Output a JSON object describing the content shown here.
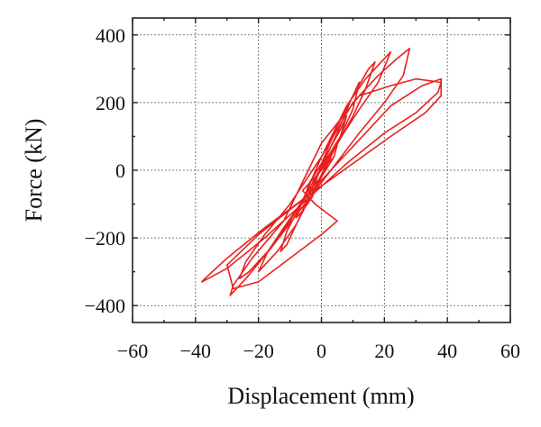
{
  "chart_data": {
    "type": "line",
    "title": "",
    "xlabel": "Displacement (mm)",
    "ylabel": "Force (kN)",
    "xlim": [
      -60,
      60
    ],
    "ylim": [
      -450,
      450
    ],
    "xticks": [
      -60,
      -40,
      -20,
      0,
      20,
      40,
      60
    ],
    "yticks": [
      -400,
      -200,
      0,
      200,
      400
    ],
    "xtick_labels": [
      "−60",
      "−40",
      "−20",
      "0",
      "20",
      "40",
      "60"
    ],
    "ytick_labels": [
      "−400",
      "−200",
      "0",
      "200",
      "400"
    ],
    "grid": true,
    "color": "#e8211f",
    "series": [
      {
        "x": [
          0,
          2,
          4,
          5,
          4,
          2,
          0,
          -2,
          -4,
          -5,
          -4,
          -2,
          0,
          3,
          6,
          8,
          6,
          3,
          0,
          -3,
          -6,
          -8,
          -6,
          -3,
          0,
          5,
          9,
          12,
          10,
          6,
          2,
          -2,
          -7,
          -11,
          -13,
          -11,
          -7,
          -2,
          0,
          5,
          10,
          15,
          17,
          14,
          10,
          4,
          -2,
          -8,
          -14,
          -18,
          -20,
          -17,
          -12,
          -6,
          0,
          8,
          14,
          19,
          22,
          18,
          12,
          5,
          -3,
          -10,
          -17,
          -23,
          -26,
          -24,
          -18,
          -10,
          0,
          10,
          18,
          24,
          28,
          26,
          20,
          12,
          3,
          -7,
          -16,
          -24,
          -29,
          -28,
          -22,
          -12,
          0,
          12,
          22,
          30,
          38,
          37,
          30,
          20,
          8,
          -5,
          -18,
          -30,
          -38,
          -37,
          -30,
          -18,
          -5,
          10,
          22,
          32,
          38,
          38,
          33,
          22,
          10,
          -5,
          -20,
          -30,
          -28,
          -20,
          -10,
          0,
          5,
          -2,
          -6,
          0,
          4
        ],
        "y": [
          0,
          30,
          60,
          75,
          40,
          10,
          -20,
          -40,
          -60,
          -70,
          -40,
          -10,
          20,
          70,
          120,
          160,
          100,
          40,
          -20,
          -80,
          -120,
          -140,
          -90,
          -40,
          10,
          110,
          200,
          260,
          180,
          100,
          40,
          -30,
          -140,
          -220,
          -240,
          -180,
          -110,
          -40,
          20,
          130,
          220,
          300,
          320,
          240,
          160,
          60,
          -50,
          -160,
          -240,
          -280,
          -300,
          -240,
          -170,
          -90,
          40,
          190,
          270,
          320,
          350,
          260,
          180,
          80,
          -40,
          -150,
          -240,
          -300,
          -320,
          -270,
          -190,
          -100,
          40,
          200,
          280,
          330,
          360,
          280,
          200,
          110,
          0,
          -120,
          -230,
          -320,
          -370,
          -340,
          -260,
          -150,
          80,
          220,
          250,
          270,
          260,
          230,
          170,
          110,
          20,
          -90,
          -200,
          -290,
          -330,
          -320,
          -260,
          -170,
          -80,
          70,
          190,
          250,
          270,
          220,
          170,
          100,
          20,
          -80,
          -190,
          -280,
          -350,
          -330,
          -260,
          -190,
          -150,
          -100,
          -60,
          0,
          40
        ]
      }
    ]
  }
}
